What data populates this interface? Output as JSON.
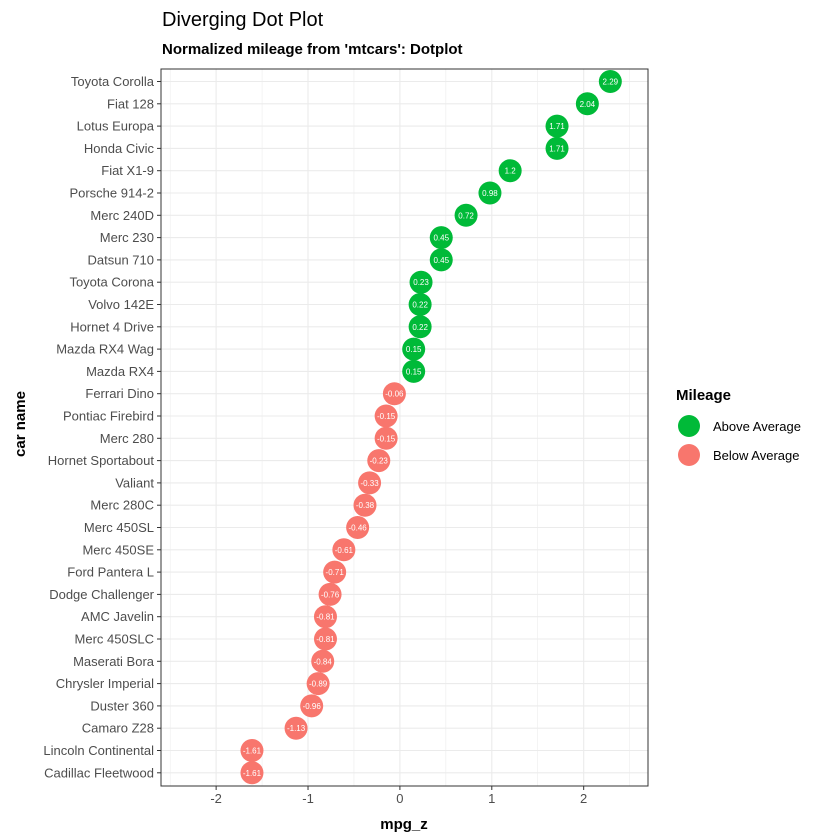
{
  "chart_data": {
    "type": "scatter",
    "title": "Diverging Dot Plot",
    "subtitle": "Normalized mileage from 'mtcars': Dotplot",
    "xlabel": "mpg_z",
    "ylabel": "car name",
    "xlim": [
      -2.6,
      2.7
    ],
    "xticks": [
      -2,
      -1,
      0,
      1,
      2
    ],
    "xtick_labels": [
      "-2",
      "-1",
      "0",
      "1",
      "2"
    ],
    "grid": true,
    "legend": {
      "title": "Mileage",
      "position": "right",
      "entries": [
        {
          "label": "Above Average",
          "color": "#00ba38"
        },
        {
          "label": "Below Average",
          "color": "#f8766d"
        }
      ]
    },
    "colors": {
      "above": "#00ba38",
      "below": "#f8766d",
      "grid": "#ebebeb",
      "panel_border": "#333333"
    },
    "points": [
      {
        "car": "Toyota Corolla",
        "mpg_z": 2.29,
        "label": "2.29",
        "group": "above"
      },
      {
        "car": "Fiat 128",
        "mpg_z": 2.04,
        "label": "2.04",
        "group": "above"
      },
      {
        "car": "Lotus Europa",
        "mpg_z": 1.71,
        "label": "1.71",
        "group": "above"
      },
      {
        "car": "Honda Civic",
        "mpg_z": 1.71,
        "label": "1.71",
        "group": "above"
      },
      {
        "car": "Fiat X1-9",
        "mpg_z": 1.2,
        "label": "1.2",
        "group": "above"
      },
      {
        "car": "Porsche 914-2",
        "mpg_z": 0.98,
        "label": "0.98",
        "group": "above"
      },
      {
        "car": "Merc 240D",
        "mpg_z": 0.72,
        "label": "0.72",
        "group": "above"
      },
      {
        "car": "Merc 230",
        "mpg_z": 0.45,
        "label": "0.45",
        "group": "above"
      },
      {
        "car": "Datsun 710",
        "mpg_z": 0.45,
        "label": "0.45",
        "group": "above"
      },
      {
        "car": "Toyota Corona",
        "mpg_z": 0.23,
        "label": "0.23",
        "group": "above"
      },
      {
        "car": "Volvo 142E",
        "mpg_z": 0.22,
        "label": "0.22",
        "group": "above"
      },
      {
        "car": "Hornet 4 Drive",
        "mpg_z": 0.22,
        "label": "0.22",
        "group": "above"
      },
      {
        "car": "Mazda RX4 Wag",
        "mpg_z": 0.15,
        "label": "0.15",
        "group": "above"
      },
      {
        "car": "Mazda RX4",
        "mpg_z": 0.15,
        "label": "0.15",
        "group": "above"
      },
      {
        "car": "Ferrari Dino",
        "mpg_z": -0.06,
        "label": "-0.06",
        "group": "below"
      },
      {
        "car": "Pontiac Firebird",
        "mpg_z": -0.15,
        "label": "-0.15",
        "group": "below"
      },
      {
        "car": "Merc 280",
        "mpg_z": -0.15,
        "label": "-0.15",
        "group": "below"
      },
      {
        "car": "Hornet Sportabout",
        "mpg_z": -0.23,
        "label": "-0.23",
        "group": "below"
      },
      {
        "car": "Valiant",
        "mpg_z": -0.33,
        "label": "-0.33",
        "group": "below"
      },
      {
        "car": "Merc 280C",
        "mpg_z": -0.38,
        "label": "-0.38",
        "group": "below"
      },
      {
        "car": "Merc 450SL",
        "mpg_z": -0.46,
        "label": "-0.46",
        "group": "below"
      },
      {
        "car": "Merc 450SE",
        "mpg_z": -0.61,
        "label": "-0.61",
        "group": "below"
      },
      {
        "car": "Ford Pantera L",
        "mpg_z": -0.71,
        "label": "-0.71",
        "group": "below"
      },
      {
        "car": "Dodge Challenger",
        "mpg_z": -0.76,
        "label": "-0.76",
        "group": "below"
      },
      {
        "car": "AMC Javelin",
        "mpg_z": -0.81,
        "label": "-0.81",
        "group": "below"
      },
      {
        "car": "Merc 450SLC",
        "mpg_z": -0.81,
        "label": "-0.81",
        "group": "below"
      },
      {
        "car": "Maserati Bora",
        "mpg_z": -0.84,
        "label": "-0.84",
        "group": "below"
      },
      {
        "car": "Chrysler Imperial",
        "mpg_z": -0.89,
        "label": "-0.89",
        "group": "below"
      },
      {
        "car": "Duster 360",
        "mpg_z": -0.96,
        "label": "-0.96",
        "group": "below"
      },
      {
        "car": "Camaro Z28",
        "mpg_z": -1.13,
        "label": "-1.13",
        "group": "below"
      },
      {
        "car": "Lincoln Continental",
        "mpg_z": -1.61,
        "label": "-1.61",
        "group": "below"
      },
      {
        "car": "Cadillac Fleetwood",
        "mpg_z": -1.61,
        "label": "-1.61",
        "group": "below"
      }
    ]
  }
}
